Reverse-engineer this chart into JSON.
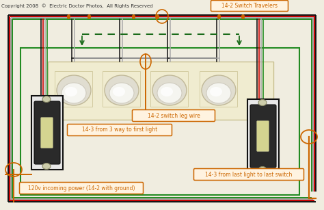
{
  "bg_color": "#f0ede0",
  "title_text": "Copyright 2008  ©  Electric Doctor Photos,  All Rights Reserved",
  "label_travelers": "14-2 Switch Travelers",
  "label_leg": "14-2 switch leg wire",
  "label_14_3_first": "14-3 from 3 way to first light",
  "label_14_3_last": "14-3 from last light to last switch",
  "label_120v": "120v incoming power (14-2 with ground)",
  "wire_black": "#111111",
  "wire_red": "#cc0000",
  "wire_white": "#aaaaaa",
  "wire_green": "#228b22",
  "wire_orange": "#cc6600",
  "wire_dkgreen": "#1a6b1a",
  "panel_bg": "#f0ecd0",
  "label_bg": "#fff3e0",
  "label_stroke": "#cc6600"
}
